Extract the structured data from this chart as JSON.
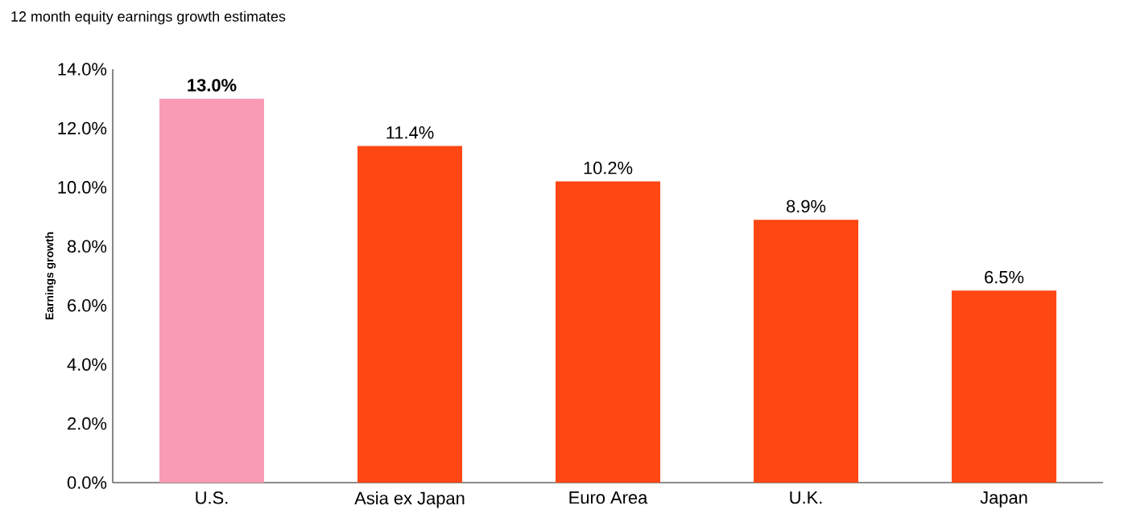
{
  "chart_data": {
    "type": "bar",
    "title": "12 month equity earnings growth estimates",
    "ylabel": "Earnings growth",
    "categories": [
      "U.S.",
      "Asia ex Japan",
      "Euro Area",
      "U.K.",
      "Japan"
    ],
    "values": [
      13.0,
      11.4,
      10.2,
      8.9,
      6.5
    ],
    "colors": [
      "#f99bb5",
      "#ff4713",
      "#ff4713",
      "#ff4713",
      "#ff4713"
    ],
    "value_labels": [
      "**13.0%**",
      "11.4%",
      "10.2%",
      "8.9%",
      "6.5%"
    ],
    "ylim": [
      0,
      14
    ],
    "yticks": [
      {
        "value": 0,
        "label": "0.0%"
      },
      {
        "value": 2,
        "label": "2.0%"
      },
      {
        "value": 4,
        "label": "4.0%"
      },
      {
        "value": 6,
        "label": "6.0%"
      },
      {
        "value": 8,
        "label": "8.0%"
      },
      {
        "value": 10,
        "label": "10.0%"
      },
      {
        "value": 12,
        "label": "12.0%"
      },
      {
        "value": 14,
        "label": "14.0%"
      }
    ],
    "tick_labels": true
  }
}
